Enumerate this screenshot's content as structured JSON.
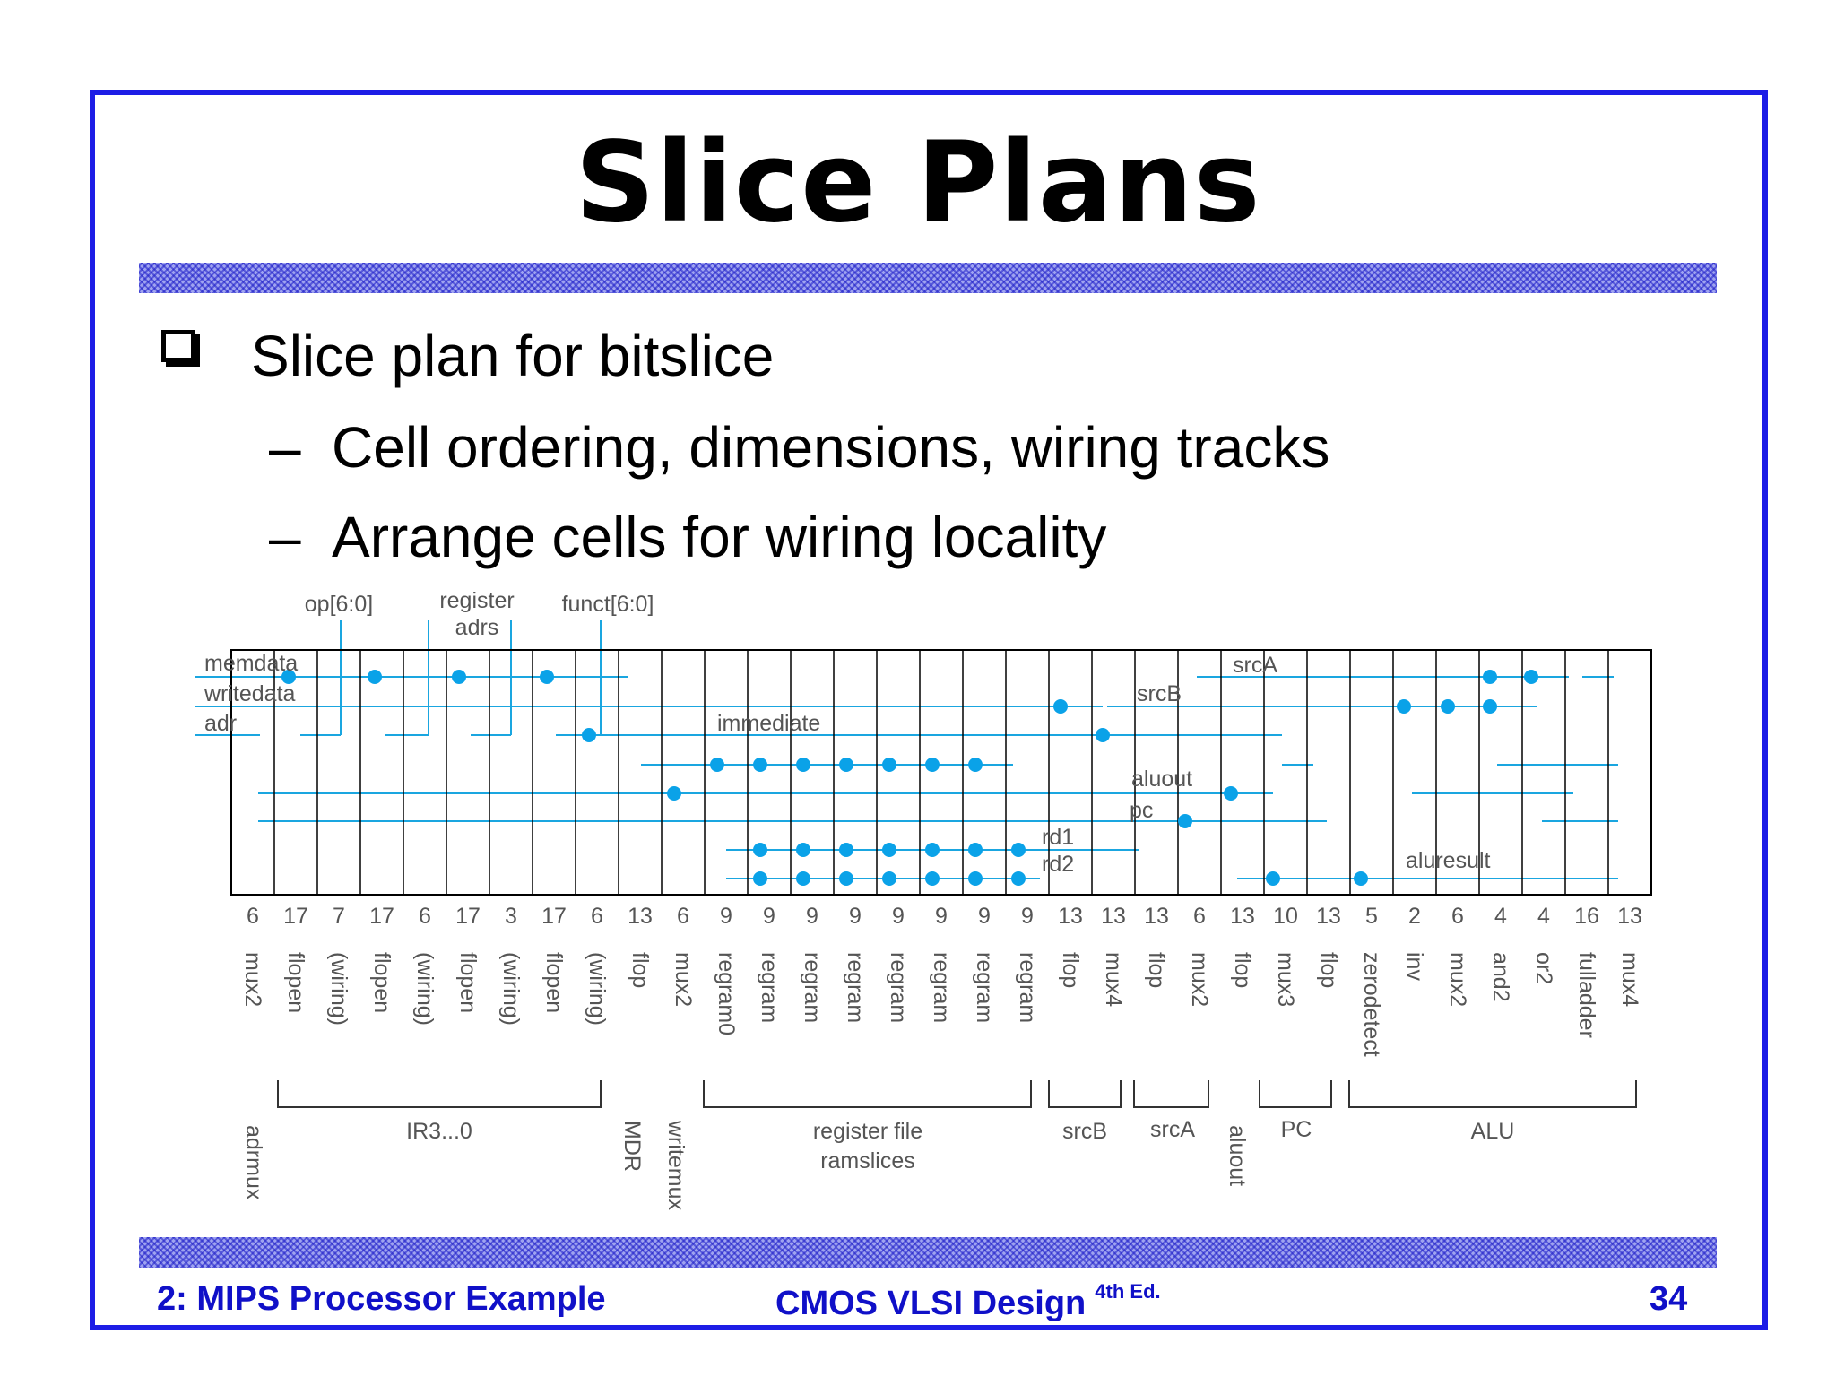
{
  "slide": {
    "title": "Slice Plans",
    "bullet": "Slice plan for bitslice",
    "subbullets": [
      "Cell ordering, dimensions, wiring tracks",
      "Arrange cells for wiring locality"
    ],
    "footer_left": "2: MIPS Processor Example",
    "footer_center": "CMOS VLSI Design",
    "footer_center_sup": "4th Ed.",
    "page_number": "34"
  },
  "diagram": {
    "top_labels": [
      "op[6:0]",
      "register",
      "adrs",
      "funct[6:0]"
    ],
    "signal_labels": [
      "memdata",
      "writedata",
      "adr",
      "immediate",
      "srcA",
      "srcB",
      "aluout",
      "pc",
      "rd1",
      "rd2",
      "aluresult"
    ],
    "columns": [
      {
        "width": "6",
        "cell": "mux2"
      },
      {
        "width": "17",
        "cell": "flopen"
      },
      {
        "width": "7",
        "cell": "(wiring)"
      },
      {
        "width": "17",
        "cell": "flopen"
      },
      {
        "width": "6",
        "cell": "(wiring)"
      },
      {
        "width": "17",
        "cell": "flopen"
      },
      {
        "width": "3",
        "cell": "(wiring)"
      },
      {
        "width": "17",
        "cell": "flopen"
      },
      {
        "width": "6",
        "cell": "(wiring)"
      },
      {
        "width": "13",
        "cell": "flop"
      },
      {
        "width": "6",
        "cell": "mux2"
      },
      {
        "width": "9",
        "cell": "regram0"
      },
      {
        "width": "9",
        "cell": "regram"
      },
      {
        "width": "9",
        "cell": "regram"
      },
      {
        "width": "9",
        "cell": "regram"
      },
      {
        "width": "9",
        "cell": "regram"
      },
      {
        "width": "9",
        "cell": "regram"
      },
      {
        "width": "9",
        "cell": "regram"
      },
      {
        "width": "9",
        "cell": "regram"
      },
      {
        "width": "13",
        "cell": "flop"
      },
      {
        "width": "13",
        "cell": "mux4"
      },
      {
        "width": "13",
        "cell": "flop"
      },
      {
        "width": "6",
        "cell": "mux2"
      },
      {
        "width": "13",
        "cell": "flop"
      },
      {
        "width": "10",
        "cell": "mux3"
      },
      {
        "width": "13",
        "cell": "flop"
      },
      {
        "width": "5",
        "cell": "zerodetect"
      },
      {
        "width": "2",
        "cell": "inv"
      },
      {
        "width": "6",
        "cell": "mux2"
      },
      {
        "width": "4",
        "cell": "and2"
      },
      {
        "width": "4",
        "cell": "or2"
      },
      {
        "width": "16",
        "cell": "fulladder"
      },
      {
        "width": "13",
        "cell": "mux4"
      }
    ],
    "groups": [
      {
        "label": "adrmux",
        "vertical": true
      },
      {
        "label": "IR3...0",
        "vertical": false
      },
      {
        "label": "MDR",
        "vertical": true
      },
      {
        "label": "writemux",
        "vertical": true
      },
      {
        "label": "register file",
        "label2": "ramslices",
        "vertical": false
      },
      {
        "label": "srcB",
        "vertical": false
      },
      {
        "label": "srcA",
        "vertical": false
      },
      {
        "label": "aluout",
        "vertical": true
      },
      {
        "label": "PC",
        "vertical": false
      },
      {
        "label": "ALU",
        "vertical": false
      }
    ]
  },
  "colors": {
    "frame": "#1d1de6",
    "footer_text": "#1010c8",
    "wire": "#1aa6e0",
    "dot": "#0aa2e8",
    "diagram_text": "#555555"
  }
}
